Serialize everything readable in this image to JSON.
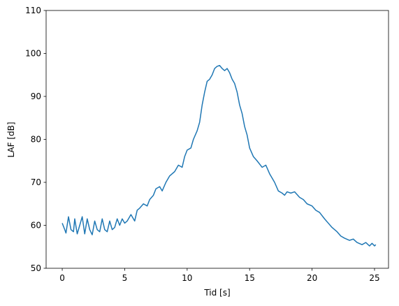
{
  "chart_data": {
    "type": "line",
    "xlabel": "Tid [s]",
    "ylabel": "LAF [dB]",
    "xlim": [
      -1.29,
      26.12
    ],
    "ylim": [
      50,
      110
    ],
    "xticks": [
      0,
      5,
      10,
      15,
      20,
      25
    ],
    "yticks": [
      50,
      60,
      70,
      80,
      90,
      100,
      110
    ],
    "series": [
      {
        "color": "#1f77b4",
        "x": [
          0,
          0.2,
          0.3,
          0.5,
          0.7,
          0.9,
          1.0,
          1.2,
          1.4,
          1.6,
          1.8,
          2.0,
          2.2,
          2.4,
          2.6,
          2.8,
          3.0,
          3.2,
          3.4,
          3.6,
          3.8,
          4.0,
          4.2,
          4.4,
          4.6,
          4.8,
          5.0,
          5.2,
          5.5,
          5.8,
          6.0,
          6.2,
          6.5,
          6.8,
          7.0,
          7.3,
          7.5,
          7.8,
          8.0,
          8.3,
          8.6,
          9.0,
          9.3,
          9.6,
          9.8,
          10.0,
          10.3,
          10.5,
          10.8,
          11.0,
          11.2,
          11.4,
          11.6,
          11.8,
          12.0,
          12.2,
          12.4,
          12.6,
          12.8,
          13.0,
          13.2,
          13.4,
          13.6,
          13.8,
          14.0,
          14.2,
          14.4,
          14.6,
          14.8,
          15.0,
          15.3,
          15.6,
          16.0,
          16.3,
          16.6,
          17.0,
          17.3,
          17.6,
          17.8,
          18.0,
          18.3,
          18.6,
          19.0,
          19.3,
          19.6,
          20.0,
          20.3,
          20.6,
          21.0,
          21.3,
          21.6,
          22.0,
          22.3,
          22.6,
          23.0,
          23.3,
          23.6,
          24.0,
          24.3,
          24.6,
          24.8,
          25.0,
          25.1
        ],
        "values": [
          60.5,
          59,
          58.2,
          62,
          59,
          58.5,
          61.5,
          58,
          60,
          62,
          58,
          61.5,
          59,
          57.8,
          61,
          59,
          58.5,
          61.5,
          59,
          58.5,
          61,
          59,
          59.5,
          61.5,
          60,
          61.5,
          60.5,
          61,
          62.5,
          61,
          63.5,
          64,
          65,
          64.5,
          66,
          67,
          68.5,
          69,
          68,
          70,
          71.5,
          72.5,
          74,
          73.5,
          76,
          77.5,
          78,
          80,
          82,
          84,
          88,
          91,
          93.5,
          94,
          95,
          96.5,
          97,
          97.2,
          96.5,
          96,
          96.5,
          95.5,
          94,
          93,
          91,
          88,
          86,
          83,
          81,
          78,
          76,
          75,
          73.5,
          74,
          72,
          70,
          68,
          67.5,
          67,
          67.8,
          67.5,
          67.8,
          66.5,
          66,
          65,
          64.5,
          63.5,
          63,
          61.5,
          60.5,
          59.5,
          58.5,
          57.5,
          57,
          56.5,
          56.8,
          56,
          55.5,
          56,
          55.2,
          55.8,
          55.2,
          55.5
        ]
      }
    ]
  }
}
